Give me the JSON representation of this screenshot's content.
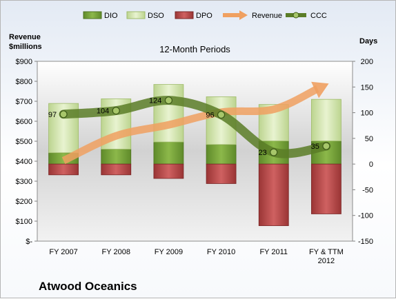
{
  "company": "Atwood Oceanics",
  "chart_data": {
    "type": "bar",
    "title": "12-Month Periods",
    "y_left_label_line1": "Revenue",
    "y_left_label_line2": "$millions",
    "y_right_label": "Days",
    "categories": [
      "FY 2007",
      "FY 2008",
      "FY 2009",
      "FY 2010",
      "FY 2011",
      "FY & TTM\n2012"
    ],
    "left_axis": {
      "min": 0,
      "max": 900,
      "step": 100,
      "ticks": [
        "$-",
        "$100",
        "$200",
        "$300",
        "$400",
        "$500",
        "$600",
        "$700",
        "$800",
        "$900"
      ]
    },
    "right_axis": {
      "min": -150,
      "max": 200,
      "step": 50,
      "ticks": [
        "-150",
        "-100",
        "-50",
        "0",
        "50",
        "100",
        "150",
        "200"
      ]
    },
    "series": [
      {
        "name": "DIO",
        "axis": "right",
        "color": "#76a13a",
        "values": [
          22,
          29,
          43,
          38,
          45,
          45
        ]
      },
      {
        "name": "DSO",
        "axis": "right",
        "color": "#d7e9b4",
        "values": [
          96,
          98,
          112,
          93,
          71,
          81
        ]
      },
      {
        "name": "DPO",
        "axis": "right",
        "color": "#b84a4a",
        "values": [
          -21,
          -21,
          -28,
          -38,
          -120,
          -97
        ]
      },
      {
        "name": "Revenue",
        "axis": "left",
        "color": "#f0a060",
        "values": [
          403,
          527,
          582,
          645,
          660,
          783
        ]
      },
      {
        "name": "CCC",
        "axis": "right",
        "color": "#5b7d27",
        "values": [
          97,
          104,
          124,
          96,
          23,
          35
        ]
      }
    ],
    "ccc_labels": [
      "97",
      "104",
      "124",
      "96",
      "23",
      "35"
    ],
    "legend_position": "top",
    "grid": false
  }
}
